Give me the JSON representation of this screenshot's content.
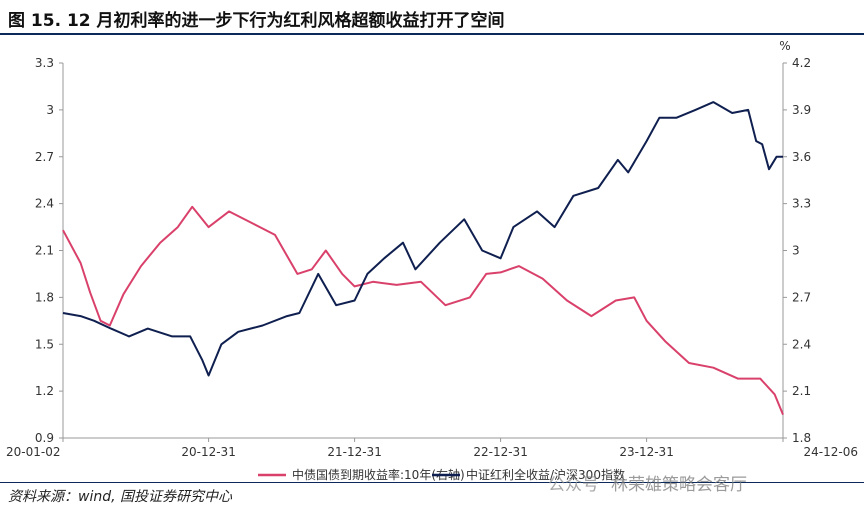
{
  "header": {
    "title": "图 15. 12 月初利率的进一步下行为红利风格超额收益打开了空间"
  },
  "footer": {
    "source": "资料来源：wind, 国投证券研究中心",
    "watermark_account": "公众号",
    "watermark_brand": "林荣雄策略会客厅"
  },
  "chart_data": {
    "type": "line",
    "right_unit": "%",
    "x_ticks": [
      "20-01-02",
      "20-12-31",
      "21-12-31",
      "22-12-31",
      "23-12-31",
      "24-12-06"
    ],
    "left_ticks": [
      "3.3",
      "3",
      "2.7",
      "2.4",
      "2.1",
      "1.8",
      "1.5",
      "1.2",
      "0.9"
    ],
    "right_ticks": [
      "4.2",
      "3.9",
      "3.6",
      "3.3",
      "3",
      "2.7",
      "2.4",
      "2.1",
      "1.8"
    ],
    "ylim_left": [
      0.9,
      3.3
    ],
    "ylim_right": [
      1.8,
      4.2
    ],
    "series": [
      {
        "name": "中债国债到期收益率:10年(右轴)",
        "axis": "right",
        "color": "#d9416b",
        "x": [
          "20-01-02",
          "20-02-15",
          "20-03-10",
          "20-04-05",
          "20-04-28",
          "20-06-01",
          "20-07-15",
          "20-09-01",
          "20-10-15",
          "20-11-20",
          "20-12-31",
          "21-02-20",
          "21-04-15",
          "21-06-15",
          "21-08-10",
          "21-09-15",
          "21-10-20",
          "21-11-30",
          "21-12-31",
          "22-02-15",
          "22-04-15",
          "22-06-15",
          "22-08-15",
          "22-10-15",
          "22-11-25",
          "22-12-31",
          "23-02-15",
          "23-04-15",
          "23-06-15",
          "23-08-15",
          "23-10-15",
          "23-11-30",
          "23-12-31",
          "24-02-15",
          "24-04-15",
          "24-06-15",
          "24-08-15",
          "24-10-10",
          "24-11-15",
          "24-12-06"
        ],
        "values": [
          3.13,
          2.92,
          2.73,
          2.55,
          2.52,
          2.72,
          2.9,
          3.05,
          3.15,
          3.28,
          3.15,
          3.25,
          3.18,
          3.1,
          2.85,
          2.88,
          3.0,
          2.85,
          2.77,
          2.8,
          2.78,
          2.8,
          2.65,
          2.7,
          2.85,
          2.86,
          2.9,
          2.82,
          2.68,
          2.58,
          2.68,
          2.7,
          2.55,
          2.42,
          2.28,
          2.25,
          2.18,
          2.18,
          2.08,
          1.95
        ]
      },
      {
        "name": "中证红利全收益/沪深300指数",
        "axis": "left",
        "color": "#0f1f4f",
        "x": [
          "20-01-02",
          "20-02-15",
          "20-03-20",
          "20-05-01",
          "20-06-15",
          "20-08-01",
          "20-10-01",
          "20-11-15",
          "20-12-15",
          "20-12-31",
          "21-02-01",
          "21-03-15",
          "21-05-15",
          "21-07-15",
          "21-08-15",
          "21-10-01",
          "21-11-15",
          "21-12-31",
          "22-02-01",
          "22-03-15",
          "22-05-01",
          "22-06-01",
          "22-08-01",
          "22-10-01",
          "22-11-15",
          "22-12-31",
          "23-02-01",
          "23-04-01",
          "23-05-15",
          "23-07-01",
          "23-09-01",
          "23-10-20",
          "23-11-15",
          "23-12-31",
          "24-02-01",
          "24-03-15",
          "24-05-01",
          "24-06-15",
          "24-08-01",
          "24-09-10",
          "24-09-30",
          "24-10-15",
          "24-11-01",
          "24-11-20",
          "24-12-06"
        ],
        "values": [
          1.7,
          1.68,
          1.65,
          1.6,
          1.55,
          1.6,
          1.55,
          1.55,
          1.4,
          1.3,
          1.5,
          1.58,
          1.62,
          1.68,
          1.7,
          1.95,
          1.75,
          1.78,
          1.95,
          2.05,
          2.15,
          1.98,
          2.15,
          2.3,
          2.1,
          2.05,
          2.25,
          2.35,
          2.25,
          2.45,
          2.5,
          2.68,
          2.6,
          2.8,
          2.95,
          2.95,
          3.0,
          3.05,
          2.98,
          3.0,
          2.8,
          2.78,
          2.62,
          2.7,
          2.7
        ]
      }
    ]
  }
}
